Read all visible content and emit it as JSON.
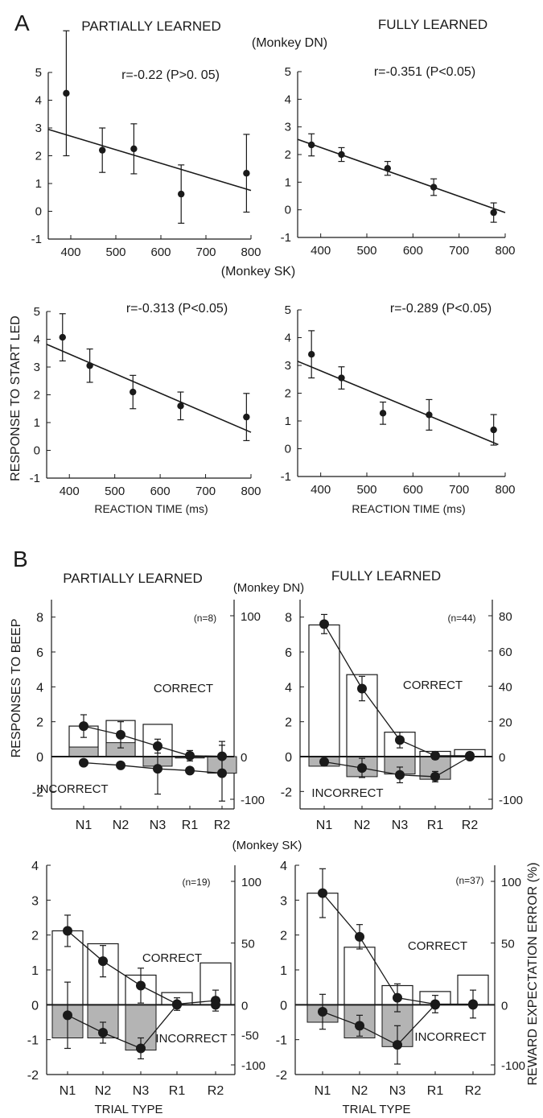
{
  "colors": {
    "axis": "#1a1a1a",
    "incorrect_fill": "#b4b4b4",
    "correct_fill": "#ffffff"
  },
  "panel_a": {
    "letter": "A",
    "headers": {
      "partial": "PARTIALLY LEARNED",
      "full": "FULLY LEARNED"
    },
    "monkeys": {
      "dn": "(Monkey DN)",
      "sk": "(Monkey SK)"
    },
    "ylabel": "RESPONSE TO START LED",
    "xlabel": "REACTION TIME (ms)"
  },
  "panel_b": {
    "letter": "B",
    "headers": {
      "partial": "PARTIALLY LEARNED",
      "full": "FULLY LEARNED"
    },
    "monkeys": {
      "dn": "(Monkey DN)",
      "sk": "(Monkey SK)"
    },
    "ylabel": "RESPONSES TO BEEP",
    "ylabel_right": "REWARD EXPECTATION ERROR (%)",
    "xlabel": "TRIAL TYPE"
  },
  "chart_data": [
    {
      "id": "a-dn-partial",
      "type": "scatter",
      "x": [
        390,
        470,
        540,
        645,
        790
      ],
      "y": [
        4.25,
        2.2,
        2.25,
        0.62,
        1.37
      ],
      "err": [
        2.25,
        0.8,
        0.9,
        1.05,
        1.4
      ],
      "fit": {
        "x": [
          350,
          800
        ],
        "y": [
          2.95,
          0.75
        ]
      },
      "annotation": "r=-0.22  (P>0. 05)",
      "xlim": [
        350,
        800
      ],
      "ylim": [
        -1,
        5
      ],
      "xticks": [
        "400",
        "500",
        "600",
        "700",
        "800"
      ],
      "yticks": [
        "-1",
        "0",
        "1",
        "2",
        "3",
        "4",
        "5"
      ]
    },
    {
      "id": "a-dn-full",
      "type": "scatter",
      "x": [
        380,
        445,
        545,
        645,
        775
      ],
      "y": [
        2.35,
        2.0,
        1.5,
        0.82,
        -0.1
      ],
      "err": [
        0.4,
        0.25,
        0.25,
        0.3,
        0.35
      ],
      "fit": {
        "x": [
          350,
          800
        ],
        "y": [
          2.55,
          -0.1
        ]
      },
      "annotation": "r=-0.351 (P<0.05)",
      "xlim": [
        350,
        800
      ],
      "ylim": [
        -1,
        5
      ],
      "xticks": [
        "400",
        "500",
        "600",
        "700",
        "800"
      ],
      "yticks": [
        "-1",
        "0",
        "1",
        "2",
        "3",
        "4",
        "5"
      ]
    },
    {
      "id": "a-sk-partial",
      "type": "scatter",
      "x": [
        385,
        445,
        540,
        645,
        790
      ],
      "y": [
        4.07,
        3.05,
        2.1,
        1.6,
        1.2
      ],
      "err": [
        0.85,
        0.6,
        0.6,
        0.5,
        0.85
      ],
      "fit": {
        "x": [
          350,
          800
        ],
        "y": [
          3.82,
          0.65
        ]
      },
      "annotation": "r=-0.313 (P<0.05)",
      "xlim": [
        350,
        800
      ],
      "ylim": [
        -1,
        5
      ],
      "xticks": [
        "400",
        "500",
        "600",
        "700",
        "800"
      ],
      "yticks": [
        "-1",
        "0",
        "1",
        "2",
        "3",
        "4",
        "5"
      ]
    },
    {
      "id": "a-sk-full",
      "type": "scatter",
      "x": [
        380,
        445,
        535,
        635,
        775
      ],
      "y": [
        3.4,
        2.55,
        1.28,
        1.22,
        0.68
      ],
      "err": [
        0.85,
        0.4,
        0.4,
        0.55,
        0.55
      ],
      "fit": {
        "x": [
          350,
          785
        ],
        "y": [
          3.15,
          0.15
        ]
      },
      "annotation": "r=-0.289 (P<0.05)",
      "xlim": [
        350,
        800
      ],
      "ylim": [
        -1,
        5
      ],
      "xticks": [
        "400",
        "500",
        "600",
        "700",
        "800"
      ],
      "yticks": [
        "-1",
        "0",
        "1",
        "2",
        "3",
        "4",
        "5"
      ]
    },
    {
      "id": "b-dn-partial",
      "type": "bar",
      "categories": [
        "N1",
        "N2",
        "N3",
        "R1",
        "R2"
      ],
      "correct": [
        1.75,
        2.07,
        1.85,
        -0.08,
        -0.05
      ],
      "incorrect": [
        0.55,
        0.8,
        0,
        -0.05,
        0
      ],
      "incorrect_neg": [
        0,
        0,
        -0.55,
        -0.08,
        -0.95
      ],
      "points_correct": [
        1.75,
        1.25,
        0.6,
        0.05,
        0.02
      ],
      "err_correct": [
        0.65,
        0.75,
        0.4,
        0.3,
        0.85
      ],
      "points_incorrect": [
        -0.35,
        -0.5,
        -0.7,
        -0.8,
        -0.95
      ],
      "err_incorrect": [
        0,
        0,
        1.45,
        0.1,
        1.6
      ],
      "n_label": "(n=8)",
      "correct_label": "CORRECT",
      "incorrect_label": "INCORRECT",
      "ylim": [
        -3,
        9
      ],
      "yticks": [
        "-2",
        "0",
        "2",
        "4",
        "6",
        "8"
      ],
      "right_ticks": [
        "-100",
        "0",
        "100"
      ]
    },
    {
      "id": "b-dn-full",
      "type": "bar",
      "categories": [
        "N1",
        "N2",
        "N3",
        "R1",
        "R2"
      ],
      "correct": [
        7.55,
        4.7,
        1.4,
        0.3,
        0.4
      ],
      "incorrect": [
        0,
        0,
        0,
        0,
        0
      ],
      "incorrect_neg": [
        -0.55,
        -1.15,
        -1.0,
        -1.3,
        0
      ],
      "points_correct": [
        7.6,
        3.9,
        0.95,
        0.05,
        0.05
      ],
      "err_correct": [
        0.55,
        0.7,
        0.45,
        0.2,
        0.2
      ],
      "points_incorrect": [
        -0.3,
        -0.65,
        -1.05,
        -1.15,
        0
      ],
      "err_incorrect": [
        0.2,
        0.55,
        0.45,
        0.3,
        0
      ],
      "n_label": "(n=44)",
      "correct_label": "CORRECT",
      "incorrect_label": "INCORRECT",
      "ylim": [
        -3,
        9
      ],
      "yticks": [
        "-2",
        "0",
        "2",
        "4",
        "6",
        "8"
      ],
      "right_ticks": [
        "-100",
        "0",
        "20",
        "40",
        "60",
        "80"
      ]
    },
    {
      "id": "b-sk-partial",
      "type": "bar",
      "categories": [
        "N1",
        "N2",
        "N3",
        "R1",
        "R2"
      ],
      "correct": [
        2.12,
        1.75,
        0.85,
        0.35,
        1.2
      ],
      "incorrect_neg": [
        -0.95,
        -0.95,
        -1.3,
        0,
        0
      ],
      "points_correct": [
        2.12,
        1.25,
        0.55,
        0.02,
        0.12
      ],
      "err_correct": [
        0.45,
        0.45,
        0.5,
        0.18,
        0.3
      ],
      "points_incorrect": [
        -0.3,
        -0.8,
        -1.25,
        0,
        0
      ],
      "err_incorrect": [
        0.95,
        0.3,
        0.3,
        0,
        0
      ],
      "n_label": "(n=19)",
      "correct_label": "CORRECT",
      "incorrect_label": "INCORRECT",
      "ylim": [
        -2,
        4
      ],
      "yticks": [
        "-2",
        "-1",
        "0",
        "1",
        "2",
        "3",
        "4"
      ],
      "right_ticks": [
        "-100",
        "-50",
        "0",
        "50",
        "100"
      ]
    },
    {
      "id": "b-sk-full",
      "type": "bar",
      "categories": [
        "N1",
        "N2",
        "N3",
        "R1",
        "R2"
      ],
      "correct": [
        3.2,
        1.65,
        0.55,
        0.38,
        0.85
      ],
      "incorrect_neg": [
        -0.5,
        -0.95,
        -1.2,
        0,
        0
      ],
      "points_correct": [
        3.2,
        1.95,
        0.2,
        0.02,
        0.02
      ],
      "err_correct": [
        0.7,
        0.35,
        0.4,
        0.25,
        0.4
      ],
      "points_incorrect": [
        -0.2,
        -0.6,
        -1.15,
        0,
        0
      ],
      "err_incorrect": [
        0.5,
        0.3,
        0.55,
        0,
        0
      ],
      "n_label": "(n=37)",
      "correct_label": "CORRECT",
      "incorrect_label": "INCORRECT",
      "ylim": [
        -2,
        4
      ],
      "yticks": [
        "-2",
        "-1",
        "0",
        "1",
        "2",
        "3",
        "4"
      ],
      "right_ticks": [
        "-100",
        "0",
        "50",
        "100"
      ]
    }
  ]
}
